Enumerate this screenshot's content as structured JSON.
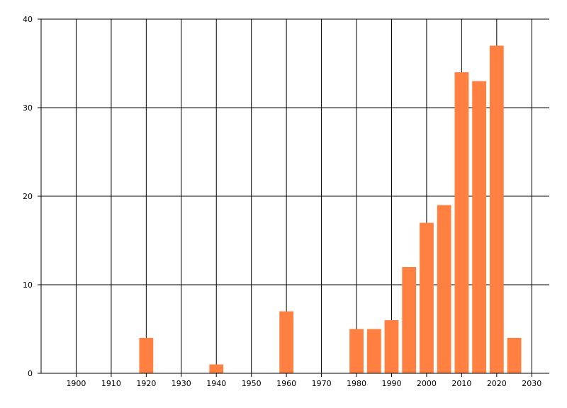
{
  "chart_data": {
    "type": "bar",
    "x": [
      1920,
      1940,
      1960,
      1980,
      1985,
      1990,
      1995,
      2000,
      2005,
      2010,
      2015,
      2020,
      2025
    ],
    "values": [
      4,
      1,
      7,
      5,
      5,
      6,
      12,
      17,
      19,
      34,
      33,
      37,
      4
    ],
    "color": "#ff8040",
    "xlim": [
      1890,
      2035
    ],
    "xticks": [
      1900,
      1910,
      1920,
      1930,
      1940,
      1950,
      1960,
      1970,
      1980,
      1990,
      2000,
      2010,
      2020,
      2030
    ],
    "ylim": [
      0,
      40
    ],
    "yticks": [
      0,
      10,
      20,
      30,
      40
    ],
    "grid": true
  }
}
